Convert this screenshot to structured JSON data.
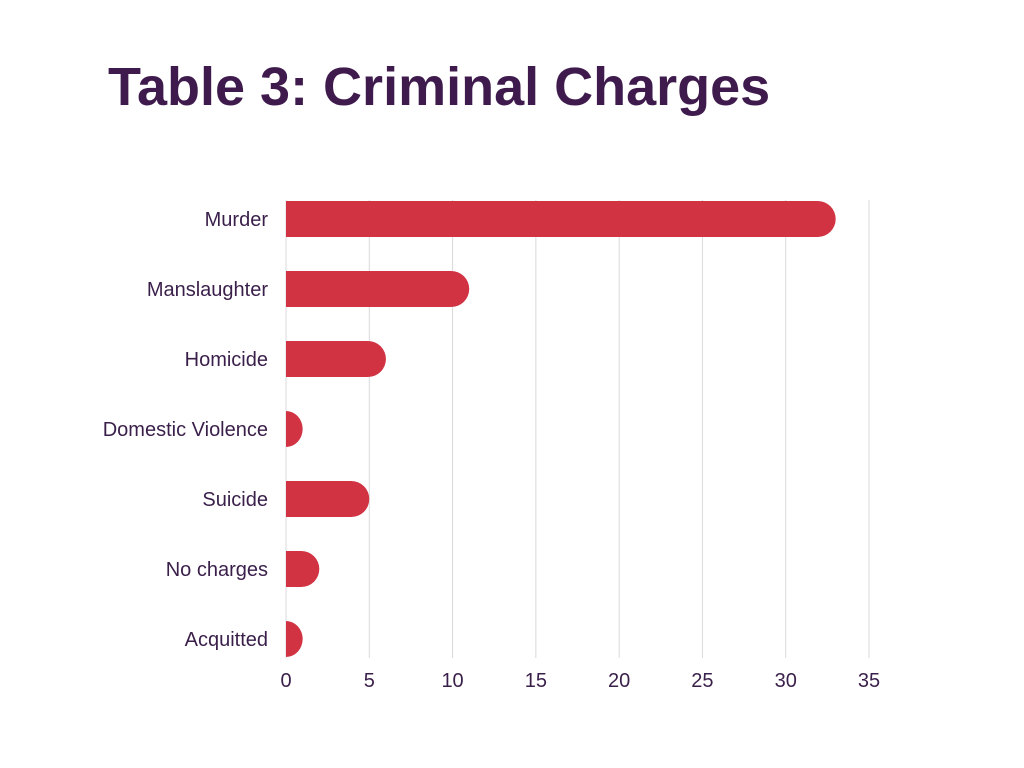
{
  "title": "Table 3: Criminal Charges",
  "chart_data": {
    "type": "bar",
    "orientation": "horizontal",
    "categories": [
      "Murder",
      "Manslaughter",
      "Homicide",
      "Domestic Violence",
      "Suicide",
      "No charges",
      "Acquitted"
    ],
    "values": [
      33,
      11,
      6,
      1,
      5,
      2,
      1
    ],
    "xlim": [
      0,
      35
    ],
    "xticks": [
      0,
      5,
      10,
      15,
      20,
      25,
      30,
      35
    ],
    "grid": true,
    "colors": {
      "bar": "#d23343",
      "text": "#3a1f4a",
      "title": "#3f1b4d",
      "grid": "#d9d9dc"
    }
  }
}
